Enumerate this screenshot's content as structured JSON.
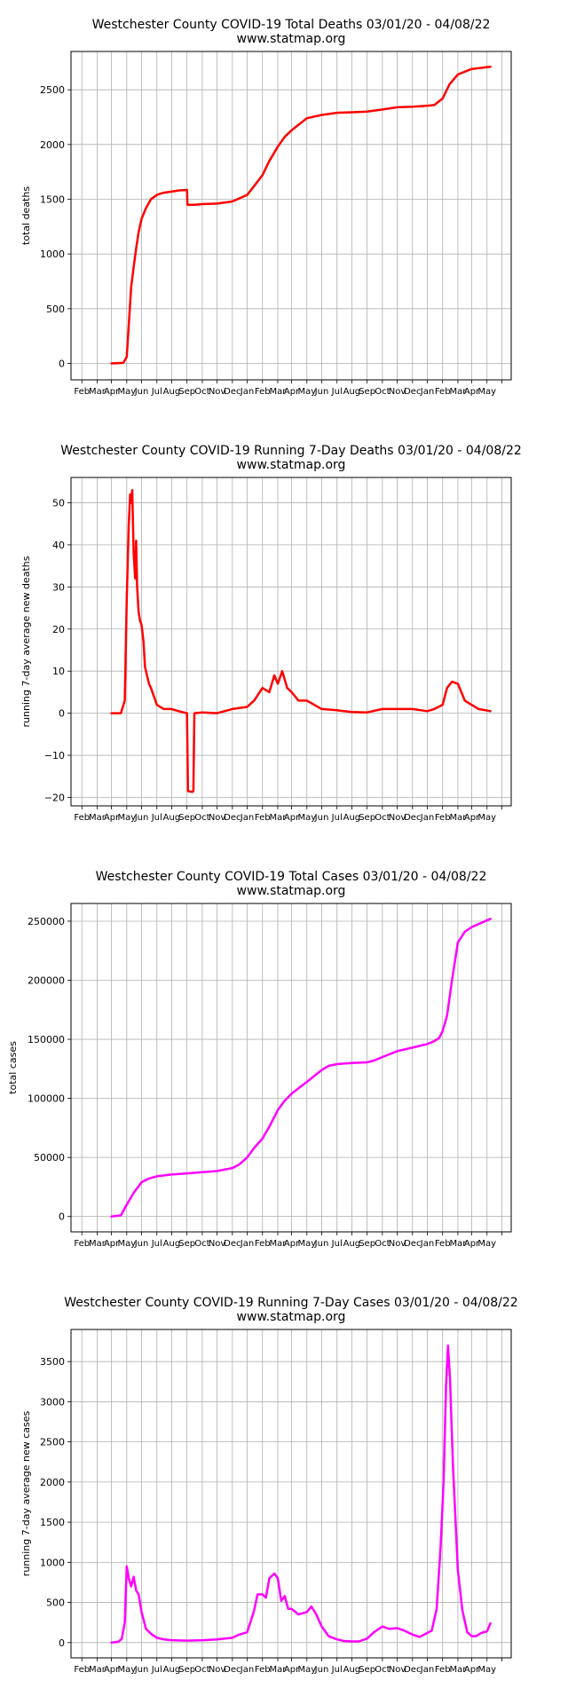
{
  "line_width": 2.5,
  "chart_data": [
    {
      "type": "line",
      "title": "Westchester County COVID-19 Total Deaths 03/01/20 - 04/08/22",
      "subtitle": "www.statmap.org",
      "xlabel": "",
      "ylabel": "total deaths",
      "x_tick_labels": [
        "Feb",
        "Mar",
        "Apr",
        "May",
        "Jun",
        "Jul",
        "Aug",
        "Sep",
        "Oct",
        "Nov",
        "Dec",
        "Jan",
        "Feb",
        "Mar",
        "Apr",
        "May",
        "Jun",
        "Jul",
        "Aug",
        "Sep",
        "Oct",
        "Nov",
        "Dec",
        "Jan",
        "Feb",
        "Mar",
        "Apr",
        "May"
      ],
      "y_ticks": [
        0,
        500,
        1000,
        1500,
        2000,
        2500
      ],
      "ylim": [
        -150,
        2850
      ],
      "grid": true,
      "color": "#ff0000",
      "series": [
        {
          "x": [
            "2020-03-01",
            "2020-03-25",
            "2020-04-01",
            "2020-04-05",
            "2020-04-10",
            "2020-04-15",
            "2020-04-20",
            "2020-04-25",
            "2020-05-01",
            "2020-05-10",
            "2020-05-20",
            "2020-06-01",
            "2020-06-15",
            "2020-07-01",
            "2020-07-15",
            "2020-08-01",
            "2020-08-02",
            "2020-08-15",
            "2020-09-01",
            "2020-10-01",
            "2020-11-01",
            "2020-12-01",
            "2020-12-15",
            "2021-01-01",
            "2021-01-15",
            "2021-02-01",
            "2021-02-15",
            "2021-03-01",
            "2021-03-15",
            "2021-04-01",
            "2021-05-01",
            "2021-06-01",
            "2021-07-01",
            "2021-08-01",
            "2021-09-01",
            "2021-10-01",
            "2021-11-01",
            "2021-12-01",
            "2021-12-15",
            "2022-01-01",
            "2022-01-15",
            "2022-02-01",
            "2022-03-01",
            "2022-04-08"
          ],
          "y": [
            0,
            5,
            60,
            350,
            700,
            880,
            1050,
            1200,
            1320,
            1420,
            1500,
            1540,
            1560,
            1570,
            1580,
            1585,
            1450,
            1450,
            1455,
            1460,
            1480,
            1540,
            1620,
            1720,
            1850,
            1980,
            2070,
            2130,
            2180,
            2240,
            2270,
            2290,
            2295,
            2300,
            2320,
            2340,
            2345,
            2355,
            2360,
            2420,
            2550,
            2640,
            2690,
            2710
          ]
        }
      ]
    },
    {
      "type": "line",
      "title": "Westchester County COVID-19 Running 7-Day Deaths 03/01/20 - 04/08/22",
      "subtitle": "www.statmap.org",
      "xlabel": "",
      "ylabel": "running 7-day average new deaths",
      "x_tick_labels": [
        "Feb",
        "Mar",
        "Apr",
        "May",
        "Jun",
        "Jul",
        "Aug",
        "Sep",
        "Oct",
        "Nov",
        "Dec",
        "Jan",
        "Feb",
        "Mar",
        "Apr",
        "May",
        "Jun",
        "Jul",
        "Aug",
        "Sep",
        "Oct",
        "Nov",
        "Dec",
        "Jan",
        "Feb",
        "Mar",
        "Apr",
        "May"
      ],
      "y_ticks": [
        -20,
        -10,
        0,
        10,
        20,
        30,
        40,
        50
      ],
      "ylim": [
        -22,
        56
      ],
      "grid": true,
      "color": "#ff0000",
      "series": [
        {
          "x": [
            "2020-03-01",
            "2020-03-20",
            "2020-03-28",
            "2020-04-01",
            "2020-04-05",
            "2020-04-08",
            "2020-04-10",
            "2020-04-12",
            "2020-04-15",
            "2020-04-18",
            "2020-04-20",
            "2020-04-22",
            "2020-04-25",
            "2020-04-28",
            "2020-05-01",
            "2020-05-05",
            "2020-05-08",
            "2020-05-12",
            "2020-05-16",
            "2020-05-20",
            "2020-06-01",
            "2020-06-15",
            "2020-07-01",
            "2020-07-15",
            "2020-08-01",
            "2020-08-03",
            "2020-08-12",
            "2020-08-14",
            "2020-08-16",
            "2020-09-01",
            "2020-10-01",
            "2020-11-01",
            "2020-12-01",
            "2020-12-15",
            "2021-01-01",
            "2021-01-15",
            "2021-01-25",
            "2021-02-01",
            "2021-02-10",
            "2021-02-20",
            "2021-03-01",
            "2021-03-15",
            "2021-04-01",
            "2021-05-01",
            "2021-06-01",
            "2021-07-01",
            "2021-08-01",
            "2021-09-01",
            "2021-10-01",
            "2021-11-01",
            "2021-12-01",
            "2021-12-15",
            "2022-01-01",
            "2022-01-10",
            "2022-01-20",
            "2022-02-01",
            "2022-02-15",
            "2022-03-01",
            "2022-03-15",
            "2022-04-08"
          ],
          "y": [
            0,
            0,
            3,
            27,
            45,
            52,
            50,
            53,
            38,
            32,
            41,
            30,
            24,
            22,
            21,
            17,
            11,
            9,
            7,
            6,
            2,
            1,
            1,
            0.5,
            0,
            -18.5,
            -18.7,
            -18.5,
            0,
            0.2,
            0,
            1,
            1.5,
            3,
            6,
            5,
            9,
            7,
            10,
            6,
            5,
            3,
            3,
            1,
            0.7,
            0.3,
            0.2,
            1,
            1,
            1,
            0.5,
            1,
            2,
            6,
            7.5,
            7,
            3,
            2,
            1,
            0.5
          ]
        }
      ]
    },
    {
      "type": "line",
      "title": "Westchester County COVID-19 Total Cases 03/01/20 - 04/08/22",
      "subtitle": "www.statmap.org",
      "xlabel": "",
      "ylabel": "total cases",
      "x_tick_labels": [
        "Feb",
        "Mar",
        "Apr",
        "May",
        "Jun",
        "Jul",
        "Aug",
        "Sep",
        "Oct",
        "Nov",
        "Dec",
        "Jan",
        "Feb",
        "Mar",
        "Apr",
        "May",
        "Jun",
        "Jul",
        "Aug",
        "Sep",
        "Oct",
        "Nov",
        "Dec",
        "Jan",
        "Feb",
        "Mar",
        "Apr",
        "May"
      ],
      "y_ticks": [
        0,
        50000,
        100000,
        150000,
        200000,
        250000
      ],
      "ylim": [
        -13000,
        265000
      ],
      "grid": true,
      "color": "#ff00ff",
      "series": [
        {
          "x": [
            "2020-03-01",
            "2020-03-20",
            "2020-04-01",
            "2020-04-15",
            "2020-05-01",
            "2020-05-15",
            "2020-06-01",
            "2020-07-01",
            "2020-08-01",
            "2020-09-01",
            "2020-10-01",
            "2020-11-01",
            "2020-11-15",
            "2020-12-01",
            "2020-12-15",
            "2021-01-01",
            "2021-01-15",
            "2021-02-01",
            "2021-02-15",
            "2021-03-01",
            "2021-04-01",
            "2021-05-01",
            "2021-05-15",
            "2021-06-01",
            "2021-07-01",
            "2021-08-01",
            "2021-08-15",
            "2021-09-01",
            "2021-10-01",
            "2021-11-01",
            "2021-12-01",
            "2021-12-15",
            "2021-12-25",
            "2022-01-01",
            "2022-01-10",
            "2022-01-20",
            "2022-02-01",
            "2022-02-15",
            "2022-03-01",
            "2022-04-08"
          ],
          "y": [
            0,
            1000,
            10000,
            20000,
            29000,
            32000,
            34000,
            35500,
            36500,
            37500,
            38500,
            41000,
            44000,
            50000,
            58000,
            66000,
            76000,
            90000,
            98000,
            104000,
            114000,
            124000,
            127500,
            129000,
            130000,
            130500,
            132000,
            135000,
            140000,
            143000,
            146000,
            148500,
            151000,
            157000,
            170000,
            200000,
            232000,
            241000,
            245000,
            252000
          ]
        }
      ]
    },
    {
      "type": "line",
      "title": "Westchester County COVID-19 Running 7-Day Cases 03/01/20 - 04/08/22",
      "subtitle": "www.statmap.org",
      "xlabel": "",
      "ylabel": "running 7-day average new cases",
      "x_tick_labels": [
        "Feb",
        "Mar",
        "Apr",
        "May",
        "Jun",
        "Jul",
        "Aug",
        "Sep",
        "Oct",
        "Nov",
        "Dec",
        "Jan",
        "Feb",
        "Mar",
        "Apr",
        "May",
        "Jun",
        "Jul",
        "Aug",
        "Sep",
        "Oct",
        "Nov",
        "Dec",
        "Jan",
        "Feb",
        "Mar",
        "Apr",
        "May"
      ],
      "y_ticks": [
        0,
        500,
        1000,
        1500,
        2000,
        2500,
        3000,
        3500
      ],
      "ylim": [
        -190,
        3900
      ],
      "grid": true,
      "color": "#ff00ff",
      "series": [
        {
          "x": [
            "2020-03-01",
            "2020-03-15",
            "2020-03-22",
            "2020-03-28",
            "2020-04-01",
            "2020-04-05",
            "2020-04-10",
            "2020-04-15",
            "2020-04-20",
            "2020-04-25",
            "2020-05-01",
            "2020-05-10",
            "2020-05-20",
            "2020-06-01",
            "2020-06-15",
            "2020-07-01",
            "2020-08-01",
            "2020-09-01",
            "2020-10-01",
            "2020-11-01",
            "2020-11-15",
            "2020-12-01",
            "2020-12-10",
            "2020-12-15",
            "2020-12-22",
            "2021-01-01",
            "2021-01-08",
            "2021-01-15",
            "2021-01-25",
            "2021-02-01",
            "2021-02-08",
            "2021-02-15",
            "2021-02-22",
            "2021-03-01",
            "2021-03-15",
            "2021-04-01",
            "2021-04-10",
            "2021-04-20",
            "2021-05-01",
            "2021-05-15",
            "2021-06-01",
            "2021-06-15",
            "2021-07-01",
            "2021-07-15",
            "2021-08-01",
            "2021-08-15",
            "2021-09-01",
            "2021-09-15",
            "2021-10-01",
            "2021-10-15",
            "2021-11-01",
            "2021-11-15",
            "2021-12-01",
            "2021-12-10",
            "2021-12-20",
            "2021-12-28",
            "2022-01-03",
            "2022-01-08",
            "2022-01-12",
            "2022-01-16",
            "2022-01-22",
            "2022-02-01",
            "2022-02-10",
            "2022-02-20",
            "2022-03-01",
            "2022-03-10",
            "2022-03-20",
            "2022-04-01",
            "2022-04-08"
          ],
          "y": [
            0,
            10,
            50,
            250,
            950,
            800,
            700,
            820,
            650,
            600,
            380,
            170,
            110,
            60,
            40,
            30,
            25,
            30,
            40,
            60,
            100,
            130,
            300,
            400,
            600,
            600,
            560,
            800,
            860,
            800,
            520,
            580,
            420,
            420,
            350,
            380,
            450,
            350,
            200,
            80,
            40,
            20,
            15,
            15,
            50,
            130,
            200,
            170,
            180,
            150,
            100,
            70,
            120,
            150,
            420,
            1200,
            2000,
            3200,
            3700,
            3300,
            2200,
            900,
            400,
            130,
            80,
            80,
            120,
            140,
            240
          ]
        }
      ]
    }
  ]
}
